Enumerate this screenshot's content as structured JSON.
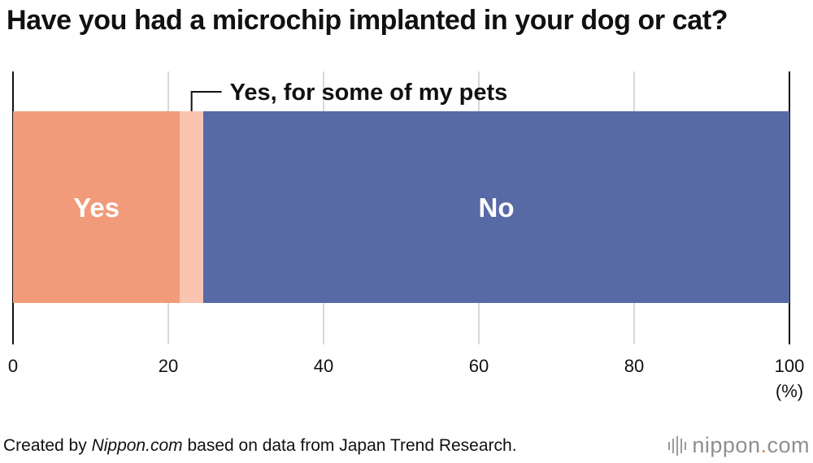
{
  "title": "Have you had a microchip implanted in your dog or cat?",
  "chart_data": {
    "type": "bar",
    "orientation": "horizontal",
    "stacked": true,
    "title": "Have you had a microchip implanted in your dog or cat?",
    "categories": [
      ""
    ],
    "series": [
      {
        "name": "Yes",
        "values": [
          21.5
        ],
        "color": "#f19b7a",
        "label": "Yes"
      },
      {
        "name": "Yes, for some of my pets",
        "values": [
          3.0
        ],
        "color": "#f9c5b1",
        "label": "Yes, for some of my pets"
      },
      {
        "name": "No",
        "values": [
          75.5
        ],
        "color": "#576aa6",
        "label": "No"
      }
    ],
    "xlim": [
      0,
      100
    ],
    "xticks": [
      0,
      20,
      40,
      60,
      80,
      100
    ],
    "xtick_labels": [
      "0",
      "20",
      "40",
      "60",
      "80",
      "100"
    ],
    "unit_label": "(%)",
    "grid": true
  },
  "footer": {
    "prefix": "Created by ",
    "site": "Nippon.com",
    "suffix": " based on data from Japan Trend Research."
  },
  "logo": {
    "name": "nippon",
    "dot": ".",
    "tld": "com"
  },
  "colors": {
    "text": "#111111",
    "grid": "#cccccc",
    "axis": "#111111",
    "bar_label": "#ffffff",
    "logo_text": "#8f8f8f",
    "logo_dot": "#e07a5f"
  }
}
